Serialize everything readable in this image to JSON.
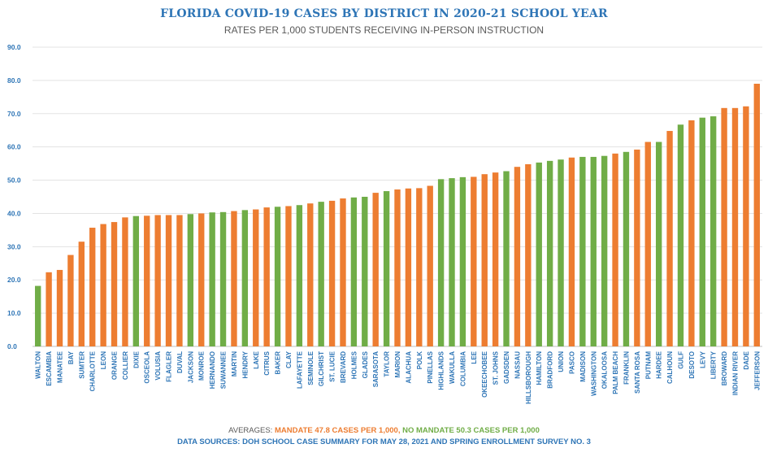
{
  "chart_data": {
    "type": "bar",
    "title": "FLORIDA COVID-19 CASES BY DISTRICT IN 2020-21 SCHOOL YEAR",
    "subtitle": "RATES PER 1,000 STUDENTS RECEIVING IN-PERSON INSTRUCTION",
    "ylim": [
      0,
      90
    ],
    "yticks": [
      "0.0",
      "10.0",
      "20.0",
      "30.0",
      "40.0",
      "50.0",
      "60.0",
      "70.0",
      "80.0",
      "90.0"
    ],
    "grid": true,
    "colors": {
      "mandate": "#ed7d31",
      "no_mandate": "#70ad47",
      "title": "#2e75b6",
      "axis_text": "#2e75b6"
    },
    "categories": [
      "WALTON",
      "ESCAMBIA",
      "MANATEE",
      "BAY",
      "SUMTER",
      "CHARLOTTE",
      "LEON",
      "ORANGE",
      "COLLIER",
      "DIXIE",
      "OSCEOLA",
      "VOLUSIA",
      "FLAGLER",
      "DUVAL",
      "JACKSON",
      "MONROE",
      "HERNANDO",
      "SUWANNEE",
      "MARTIN",
      "HENDRY",
      "LAKE",
      "CITRUS",
      "BAKER",
      "CLAY",
      "LAFAYETTE",
      "SEMINOLE",
      "GILCHRIST",
      "ST. LUCIE",
      "BREVARD",
      "HOLMES",
      "GLADES",
      "SARASOTA",
      "TAYLOR",
      "MARION",
      "ALACHUA",
      "POLK",
      "PINELLAS",
      "HIGHLANDS",
      "WAKULLA",
      "COLUMBIA",
      "LEE",
      "OKEECHOBEE",
      "ST. JOHNS",
      "GADSDEN",
      "NASSAU",
      "HILLSBOROUGH",
      "HAMILTON",
      "BRADFORD",
      "UNION",
      "PASCO",
      "MADISON",
      "WASHINGTON",
      "OKALOOSA",
      "PALM BEACH",
      "FRANKLIN",
      "SANTA ROSA",
      "PUTNAM",
      "HARDEE",
      "CALHOUN",
      "GULF",
      "DESOTO",
      "LEVY",
      "LIBERTY",
      "BROWARD",
      "INDIAN RIVER",
      "DADE",
      "JEFFERSON"
    ],
    "values": [
      18.2,
      22.3,
      23.0,
      27.5,
      31.5,
      35.7,
      36.8,
      37.4,
      38.8,
      39.2,
      39.3,
      39.5,
      39.5,
      39.5,
      39.8,
      40.0,
      40.3,
      40.4,
      40.7,
      41.0,
      41.2,
      41.8,
      42.0,
      42.2,
      42.5,
      43.0,
      43.5,
      43.8,
      44.5,
      44.8,
      45.0,
      46.2,
      46.7,
      47.2,
      47.5,
      47.6,
      48.3,
      50.3,
      50.6,
      50.9,
      51.0,
      51.8,
      52.3,
      52.7,
      54.0,
      54.8,
      55.3,
      55.8,
      56.2,
      56.8,
      57.0,
      57.0,
      57.3,
      58.0,
      58.5,
      59.2,
      61.5,
      61.5,
      64.8,
      66.7,
      68.0,
      68.8,
      69.2,
      71.7,
      71.7,
      72.2,
      79.0
    ],
    "groups": [
      "no_mandate",
      "mandate",
      "mandate",
      "mandate",
      "mandate",
      "mandate",
      "mandate",
      "mandate",
      "mandate",
      "no_mandate",
      "mandate",
      "mandate",
      "mandate",
      "mandate",
      "no_mandate",
      "mandate",
      "no_mandate",
      "no_mandate",
      "mandate",
      "no_mandate",
      "mandate",
      "mandate",
      "no_mandate",
      "mandate",
      "no_mandate",
      "mandate",
      "no_mandate",
      "mandate",
      "mandate",
      "no_mandate",
      "no_mandate",
      "mandate",
      "no_mandate",
      "mandate",
      "mandate",
      "mandate",
      "mandate",
      "no_mandate",
      "no_mandate",
      "no_mandate",
      "mandate",
      "mandate",
      "mandate",
      "no_mandate",
      "mandate",
      "mandate",
      "no_mandate",
      "no_mandate",
      "no_mandate",
      "mandate",
      "no_mandate",
      "no_mandate",
      "no_mandate",
      "mandate",
      "no_mandate",
      "mandate",
      "mandate",
      "no_mandate",
      "mandate",
      "no_mandate",
      "mandate",
      "no_mandate",
      "no_mandate",
      "mandate",
      "mandate",
      "mandate",
      "mandate"
    ]
  },
  "footer": {
    "averages_label": "AVERAGES:",
    "mandate_text": "MANDATE 47.8 CASES PER 1,000,",
    "no_mandate_text": "NO MANDATE 50.3 CASES PER 1,000",
    "sources": "DATA SOURCES: DOH SCHOOL CASE SUMMARY FOR MAY 28, 2021 AND SPRING ENROLLMENT SURVEY NO. 3"
  }
}
